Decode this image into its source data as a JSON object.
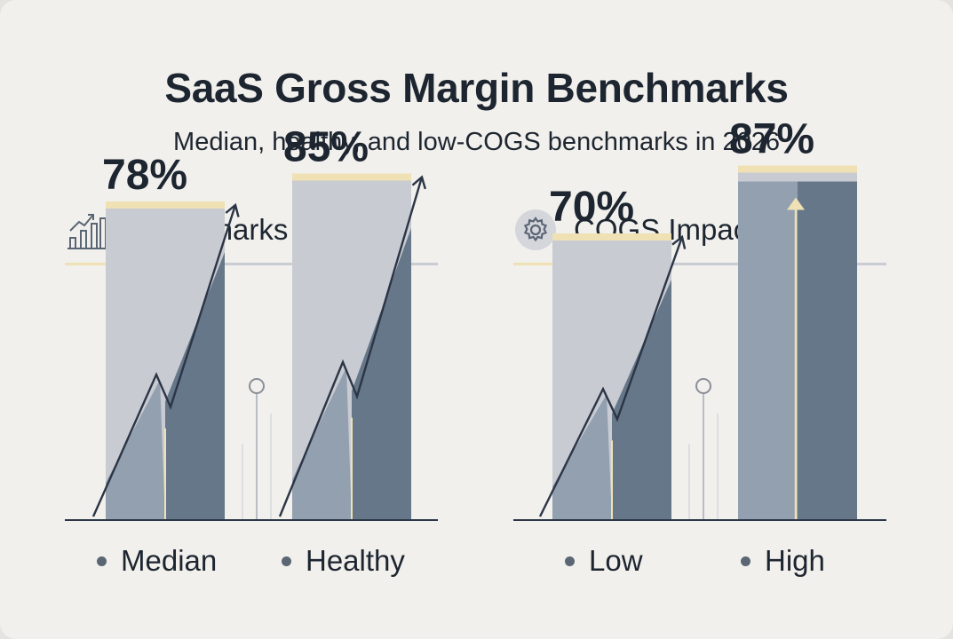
{
  "header": {
    "title": "SaaS Gross Margin Benchmarks",
    "subtitle": "Median, healthy, and low-COGS benchmarks in 2026"
  },
  "panels": [
    {
      "title": "Benchmarks",
      "icon": "bar-chart-trend-icon"
    },
    {
      "title": "COGS Impact",
      "icon": "gear-icon"
    }
  ],
  "colors": {
    "background": "#f1f0ec",
    "bar_light": "#c9cbd2",
    "bar_mid": "#93a0b0",
    "bar_dark": "#66778a",
    "accent": "#efe1b3",
    "text": "#1d2530"
  },
  "chart_data": [
    {
      "type": "bar",
      "categories": [
        "Median",
        "Healthy"
      ],
      "values": [
        78,
        85
      ],
      "labels": [
        "78%",
        "85%"
      ],
      "title": "Benchmarks",
      "ylim": [
        0,
        100
      ],
      "legend": [
        "Median",
        "Healthy"
      ],
      "legend_position": "bottom"
    },
    {
      "type": "bar",
      "categories": [
        "Low",
        "High"
      ],
      "values": [
        70,
        87
      ],
      "labels": [
        "70%",
        "87%"
      ],
      "title": "COGS Impact",
      "ylim": [
        0,
        100
      ],
      "legend": [
        "Low",
        "High"
      ],
      "legend_position": "bottom"
    }
  ]
}
